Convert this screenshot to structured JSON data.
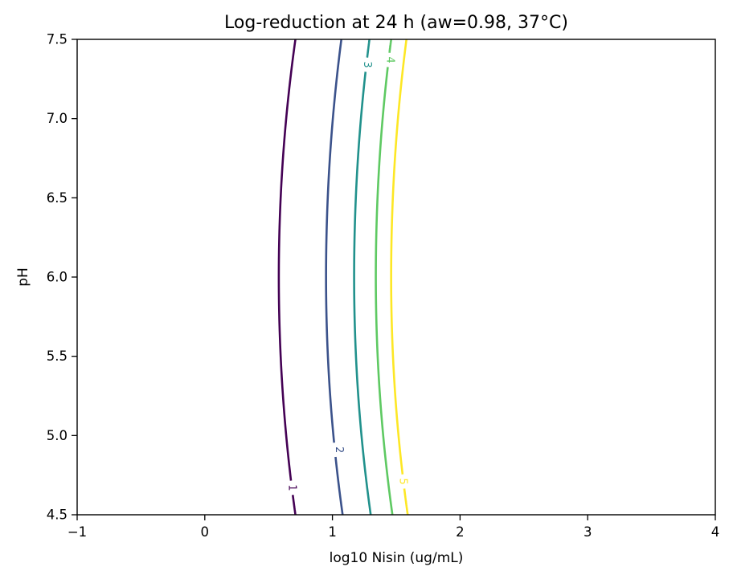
{
  "chart_data": {
    "type": "contour",
    "title": "Log-reduction at 24 h (aw=0.98, 37°C)",
    "xlabel": "log10 Nisin (ug/mL)",
    "ylabel": "pH",
    "xlim": [
      -1,
      4
    ],
    "ylim": [
      4.5,
      7.5
    ],
    "xticks": [
      "−1",
      "0",
      "1",
      "2",
      "3",
      "4"
    ],
    "yticks": [
      "4.5",
      "5.0",
      "5.5",
      "6.0",
      "6.5",
      "7.0",
      "7.5"
    ],
    "grid": false,
    "levels": [
      {
        "level": "1",
        "color": "#440154",
        "x_at_pH6": 0.58,
        "x_at_pH4_5": 0.71,
        "x_at_pH7_5": 0.71
      },
      {
        "level": "2",
        "color": "#3b528b",
        "x_at_pH6": 0.95,
        "x_at_pH4_5": 1.08,
        "x_at_pH7_5": 1.07
      },
      {
        "level": "3",
        "color": "#21918c",
        "x_at_pH6": 1.17,
        "x_at_pH4_5": 1.3,
        "x_at_pH7_5": 1.29
      },
      {
        "level": "4",
        "color": "#5ec962",
        "x_at_pH6": 1.34,
        "x_at_pH4_5": 1.47,
        "x_at_pH7_5": 1.46
      },
      {
        "level": "5",
        "color": "#fde725",
        "x_at_pH6": 1.46,
        "x_at_pH4_5": 1.59,
        "x_at_pH7_5": 1.58
      }
    ],
    "labels_on_lines": [
      {
        "level": "1",
        "x": 0.68,
        "y": 4.67
      },
      {
        "level": "2",
        "x": 1.05,
        "y": 4.91
      },
      {
        "level": "3",
        "x": 1.27,
        "y": 7.34
      },
      {
        "level": "4",
        "x": 1.45,
        "y": 7.37
      },
      {
        "level": "5",
        "x": 1.55,
        "y": 4.71
      }
    ]
  }
}
